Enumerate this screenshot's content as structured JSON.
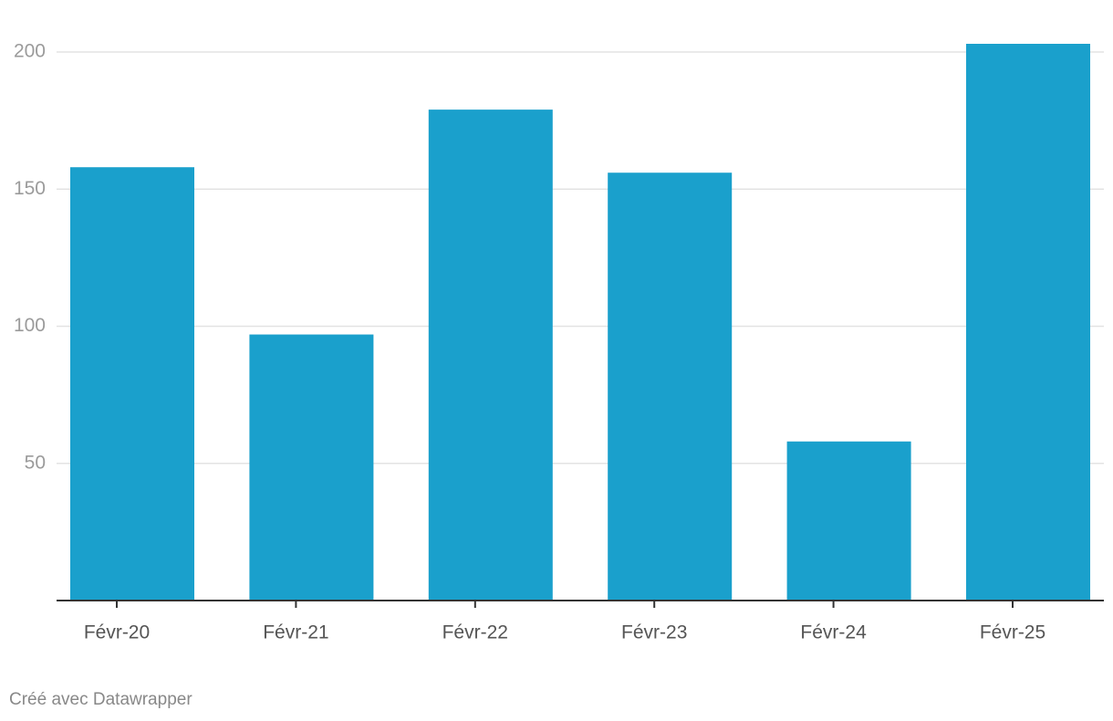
{
  "chart_data": {
    "type": "bar",
    "categories": [
      "Févr-20",
      "Févr-21",
      "Févr-22",
      "Févr-23",
      "Févr-24",
      "Févr-25"
    ],
    "values": [
      158,
      97,
      179,
      156,
      58,
      203
    ],
    "color": "#1aa0cc",
    "ylim": [
      0,
      203
    ],
    "yticks": [
      50,
      100,
      150,
      200
    ],
    "grid": true
  },
  "footer": {
    "credit": "Créé avec Datawrapper"
  }
}
